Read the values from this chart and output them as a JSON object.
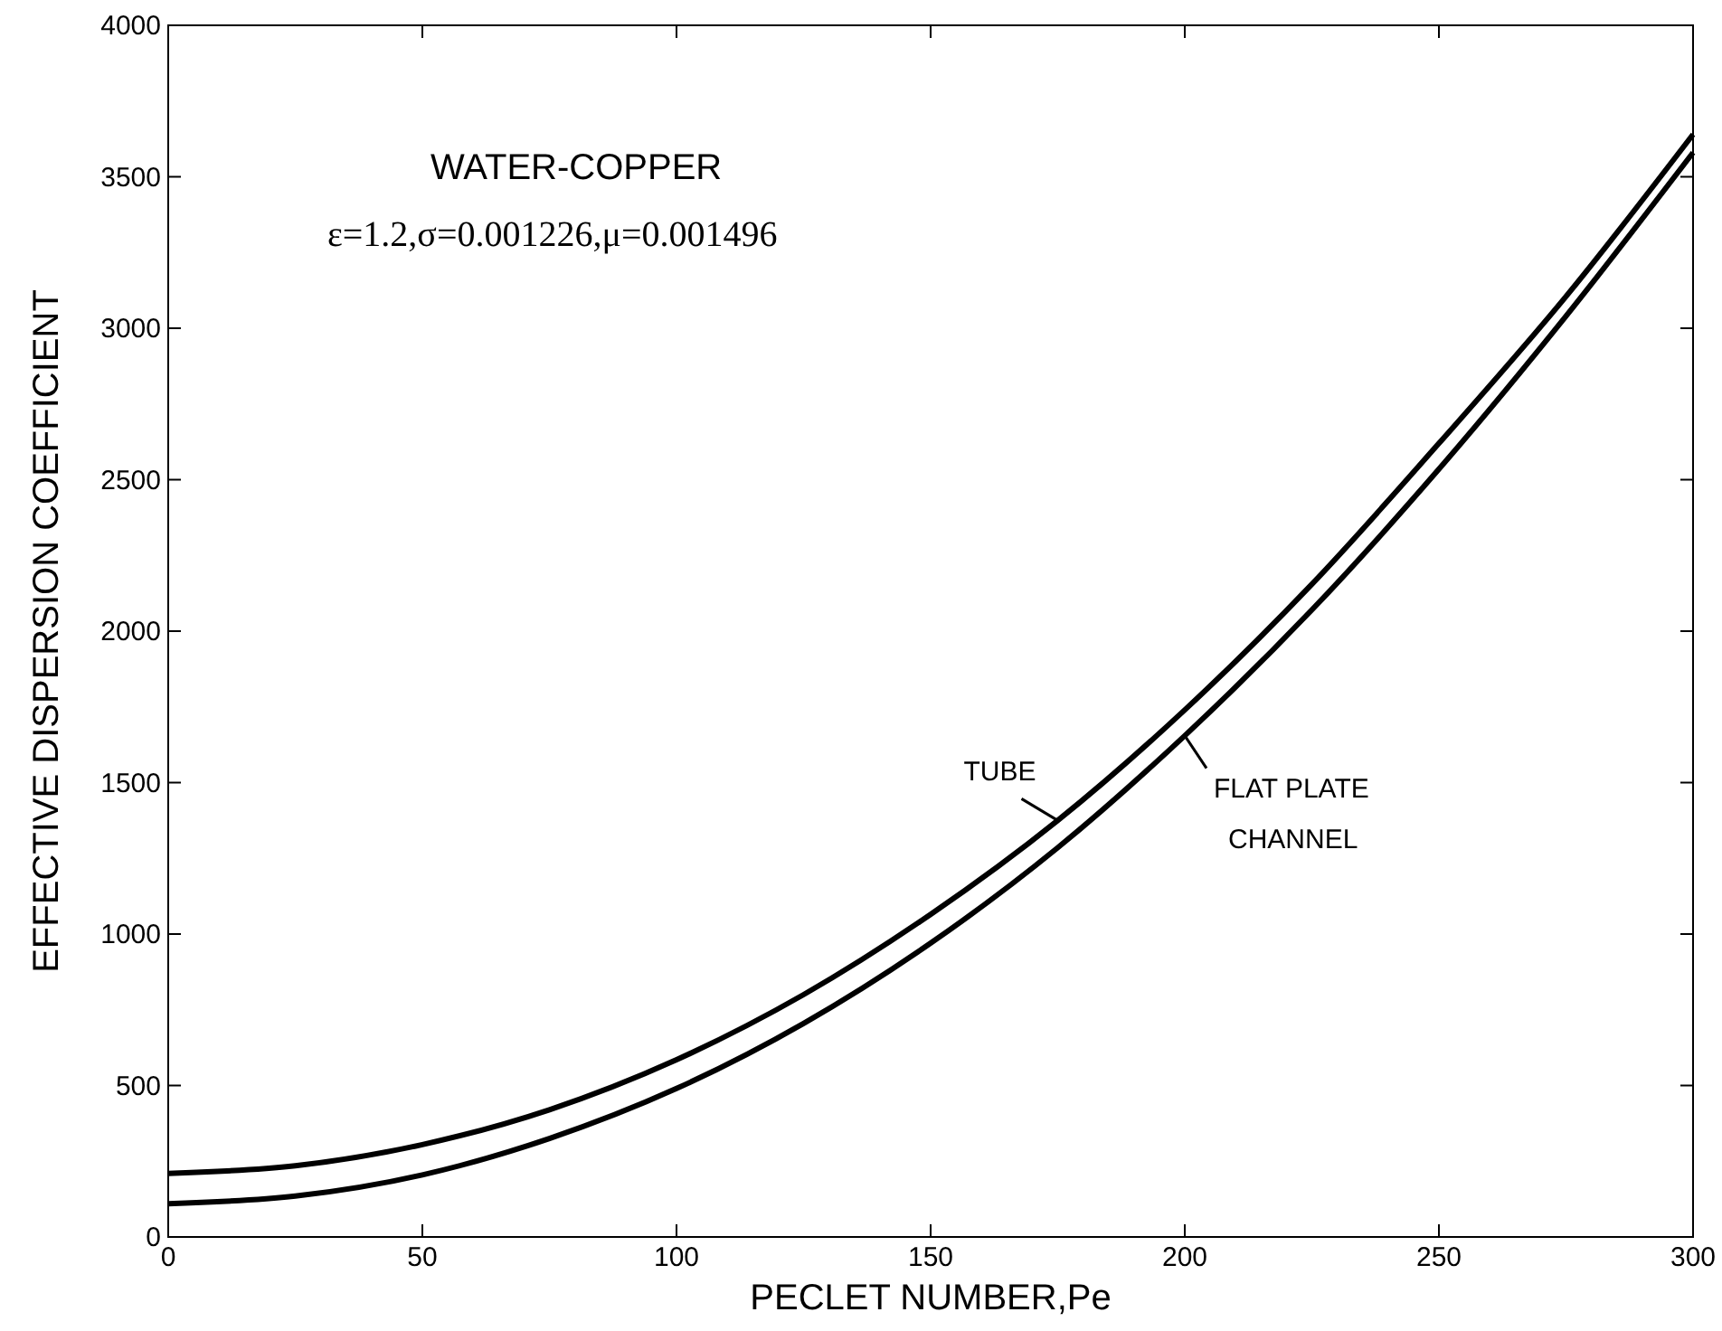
{
  "chart_data": {
    "type": "line",
    "title": "WATER-COPPER",
    "subtitle": "ε=1.2,σ=0.001226,μ=0.001496",
    "xlabel": "PECLET NUMBER,Pe",
    "ylabel": "EFFECTIVE DISPERSION COEFFICIENT",
    "x": [
      0,
      25,
      50,
      75,
      100,
      125,
      150,
      175,
      200,
      225,
      250,
      275,
      300
    ],
    "series": [
      {
        "name": "TUBE",
        "color": "#000000",
        "values": [
          210,
          235,
          305,
          420,
          585,
          800,
          1065,
          1375,
          1740,
          2155,
          2620,
          3105,
          3640
        ]
      },
      {
        "name": "FLAT PLATE CHANNEL",
        "color": "#000000",
        "values": [
          110,
          135,
          205,
          325,
          490,
          705,
          970,
          1285,
          1655,
          2070,
          2535,
          3040,
          3580
        ]
      }
    ],
    "xlim": [
      0,
      300
    ],
    "xticks": [
      0,
      50,
      100,
      150,
      200,
      250,
      300
    ],
    "ylim": [
      0,
      4000
    ],
    "yticks": [
      0,
      500,
      1000,
      1500,
      2000,
      2500,
      3000,
      3500,
      4000
    ],
    "grid": false,
    "marker": "none",
    "line_style": "solid"
  }
}
